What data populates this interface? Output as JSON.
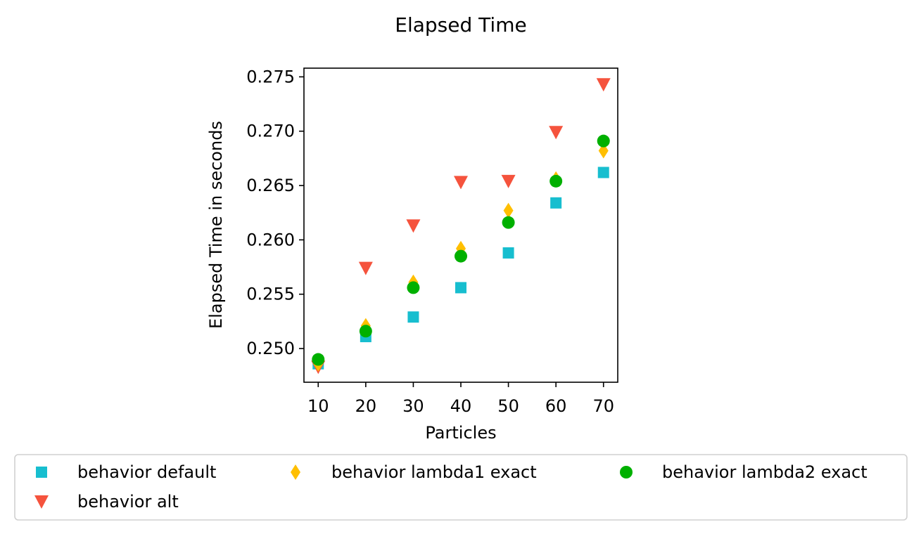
{
  "chart_data": {
    "type": "scatter",
    "title": "Elapsed Time",
    "xlabel": "Particles",
    "ylabel": "Elapsed Time in seconds",
    "xlim": [
      7,
      73
    ],
    "ylim": [
      0.2469,
      0.2758
    ],
    "x": [
      10,
      20,
      30,
      40,
      50,
      60,
      70
    ],
    "xticks": [
      10,
      20,
      30,
      40,
      50,
      60,
      70
    ],
    "xtick_labels": [
      "10",
      "20",
      "30",
      "40",
      "50",
      "60",
      "70"
    ],
    "yticks": [
      0.25,
      0.255,
      0.26,
      0.265,
      0.27,
      0.275
    ],
    "ytick_labels": [
      "0.250",
      "0.255",
      "0.260",
      "0.265",
      "0.270",
      "0.275"
    ],
    "grid": false,
    "legend_position": "bottom",
    "series": [
      {
        "name": "behavior default",
        "marker": "square",
        "color": "#17becf",
        "values": [
          0.2486,
          0.2511,
          0.2529,
          0.2556,
          0.2588,
          0.2634,
          0.2662
        ]
      },
      {
        "name": "behavior alt",
        "marker": "triangle-down",
        "color": "#f5533d",
        "values": [
          0.2483,
          0.2574,
          0.2613,
          0.2653,
          0.2654,
          0.2699,
          0.2743
        ]
      },
      {
        "name": "behavior lambda1 exact",
        "marker": "thin-diamond",
        "color": "#ffbf00",
        "values": [
          0.2486,
          0.2521,
          0.2561,
          0.2592,
          0.2627,
          0.2656,
          0.2682
        ]
      },
      {
        "name": "behavior lambda2 exact",
        "marker": "circle",
        "color": "#00b000",
        "values": [
          0.249,
          0.2516,
          0.2556,
          0.2585,
          0.2616,
          0.2654,
          0.2691
        ]
      }
    ]
  }
}
